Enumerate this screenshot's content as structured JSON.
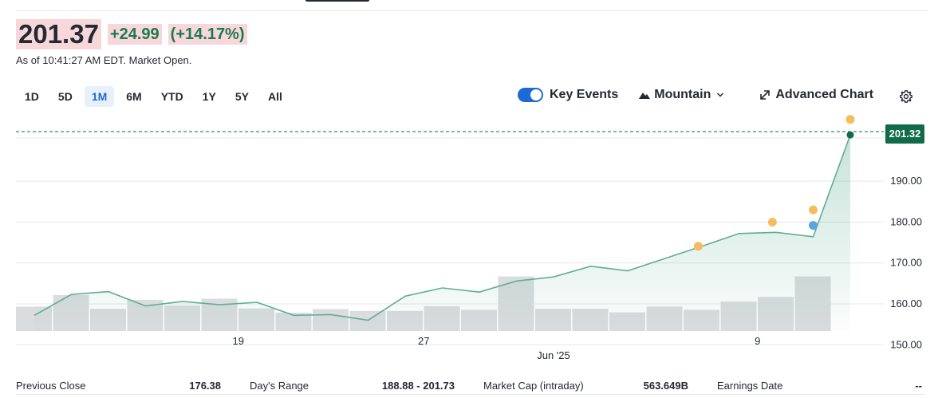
{
  "quote": {
    "price": "201.37",
    "change": "+24.99",
    "change_pct": "(+14.17%)",
    "as_of": "As of 10:41:27 AM EDT. Market Open."
  },
  "ranges": [
    "1D",
    "5D",
    "1M",
    "6M",
    "YTD",
    "1Y",
    "5Y",
    "All"
  ],
  "active_range": "1M",
  "toolbar": {
    "key_events_label": "Key Events",
    "key_events_on": true,
    "chart_type_label": "Mountain",
    "advanced_label": "Advanced Chart"
  },
  "chart_data": {
    "type": "area",
    "price_line": [
      157.2,
      162.3,
      163.0,
      159.5,
      160.6,
      159.8,
      160.4,
      157.2,
      157.4,
      156.0,
      161.9,
      163.9,
      162.9,
      165.6,
      166.6,
      169.2,
      168.1,
      171.1,
      174.1,
      177.2,
      177.5,
      176.4,
      201.32
    ],
    "volume": [
      6.8,
      10.0,
      6.2,
      8.7,
      7.1,
      9.0,
      6.3,
      5.1,
      6.1,
      5.6,
      5.6,
      6.9,
      5.9,
      15.2,
      6.2,
      6.2,
      5.2,
      6.8,
      5.9,
      8.2,
      9.5,
      15.2
    ],
    "current_value": "201.32",
    "y_ticks": [
      "190.00",
      "180.00",
      "170.00",
      "160.00",
      "150.00"
    ],
    "y_range": [
      144.6,
      207.0
    ],
    "x_ticks": [
      {
        "label": "19",
        "index": 5.5
      },
      {
        "label": "27",
        "index": 10.5
      },
      {
        "label": "9",
        "index": 19.5
      }
    ],
    "x_caption": {
      "label": "Jun '25",
      "index": 14.0
    },
    "key_events": [
      {
        "index": 17.9,
        "value": 174.1,
        "color": "#f6bd60"
      },
      {
        "index": 19.9,
        "value": 180.0,
        "color": "#f6bd60"
      },
      {
        "index": 21.0,
        "value": 183.0,
        "color": "#f6bd60"
      },
      {
        "index": 21.0,
        "value": 179.2,
        "color": "#5aa5e0"
      },
      {
        "index": 22.0,
        "value": 205.1,
        "color": "#f6bd60"
      }
    ],
    "colors": {
      "line": "#5fae95",
      "last_dot": "#0f6b4a",
      "badge": "#0f6b4a",
      "volume": "#dadcde"
    }
  },
  "stats": [
    {
      "label": "Previous Close",
      "value": "176.38"
    },
    {
      "label": "Day's Range",
      "value": "188.88 - 201.73"
    },
    {
      "label": "Market Cap (intraday)",
      "value": "563.649B"
    },
    {
      "label": "Earnings Date",
      "value": "--"
    }
  ]
}
